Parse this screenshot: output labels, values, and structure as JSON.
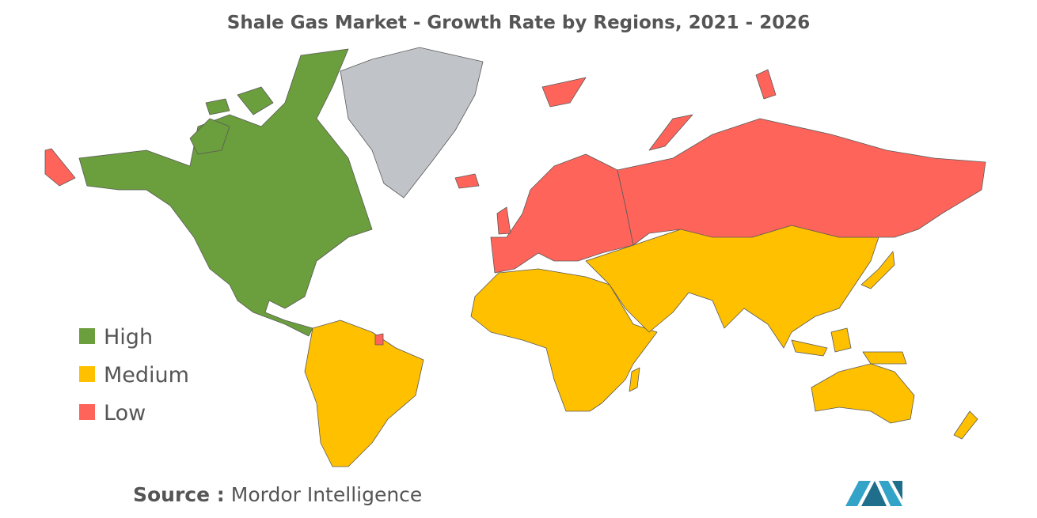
{
  "title": "Shale Gas Market - Growth Rate by Regions, 2021 - 2026",
  "legend": [
    {
      "label": "High",
      "color": "#6b9e3c"
    },
    {
      "label": "Medium",
      "color": "#ffc000"
    },
    {
      "label": "Low",
      "color": "#ff645a"
    }
  ],
  "source": {
    "label": "Source :",
    "text": "Mordor Intelligence"
  }
}
